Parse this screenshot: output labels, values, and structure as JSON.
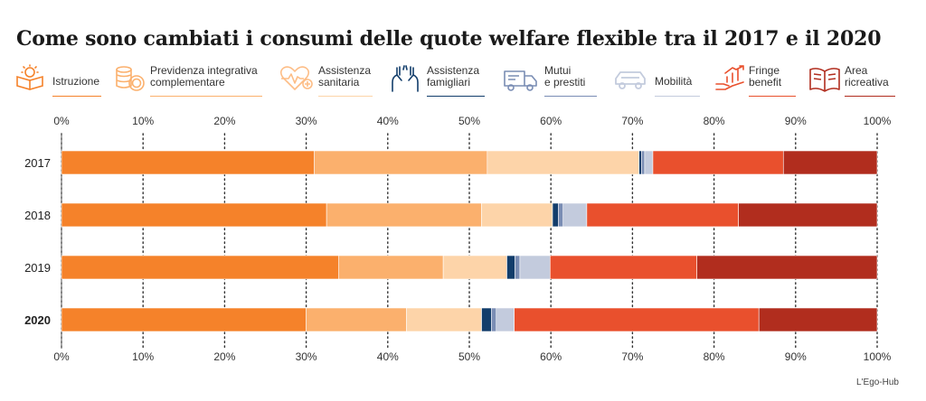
{
  "title": "Come sono cambiati i consumi delle quote welfare flexible tra il 2017 e il 2020",
  "source": "L'Ego-Hub",
  "legend": [
    {
      "label": "Istruzione",
      "icon": "education-icon",
      "color": "#f5822a"
    },
    {
      "label": "Previdenza integrativa\ncomplementare",
      "icon": "coins-icon",
      "color": "#fbb06d"
    },
    {
      "label": "Assistenza\nsanitaria",
      "icon": "health-heart-icon",
      "color": "#fdd4a9"
    },
    {
      "label": "Assistenza\nfamigliari",
      "icon": "family-hands-icon",
      "color": "#123d6b"
    },
    {
      "label": "Mutui\ne prestiti",
      "icon": "mortgage-truck-icon",
      "color": "#7a8db4"
    },
    {
      "label": "Mobilità",
      "icon": "car-icon",
      "color": "#c3cbdd"
    },
    {
      "label": "Fringe\nbenefit",
      "icon": "fringe-benefit-icon",
      "color": "#e9502d"
    },
    {
      "label": "Area\nricreativa",
      "icon": "book-icon",
      "color": "#b12d1e"
    }
  ],
  "chart_data": {
    "type": "bar",
    "orientation": "horizontal-stacked-100",
    "categories": [
      "2017",
      "2018",
      "2019",
      "2020"
    ],
    "xlim": [
      0,
      100
    ],
    "ticks": [
      "0%",
      "10%",
      "20%",
      "30%",
      "40%",
      "50%",
      "60%",
      "70%",
      "80%",
      "90%",
      "100%"
    ],
    "series": [
      {
        "name": "Istruzione",
        "values": [
          31,
          32.5,
          34,
          30
        ]
      },
      {
        "name": "Previdenza integrativa complementare",
        "values": [
          21.2,
          19,
          12.8,
          12.3
        ]
      },
      {
        "name": "Assistenza sanitaria",
        "values": [
          18.6,
          8.7,
          7.8,
          9.2
        ]
      },
      {
        "name": "Assistenza famigliari",
        "values": [
          0.3,
          0.7,
          1.0,
          1.2
        ]
      },
      {
        "name": "Mutui e prestiti",
        "values": [
          0.4,
          0.6,
          0.6,
          0.6
        ]
      },
      {
        "name": "Mobilità",
        "values": [
          1.0,
          2.9,
          3.7,
          2.2
        ]
      },
      {
        "name": "Fringe benefit",
        "values": [
          16.0,
          18.6,
          18.0,
          30.0
        ]
      },
      {
        "name": "Area ricreativa",
        "values": [
          11.5,
          17.0,
          22.1,
          14.5
        ]
      }
    ]
  }
}
